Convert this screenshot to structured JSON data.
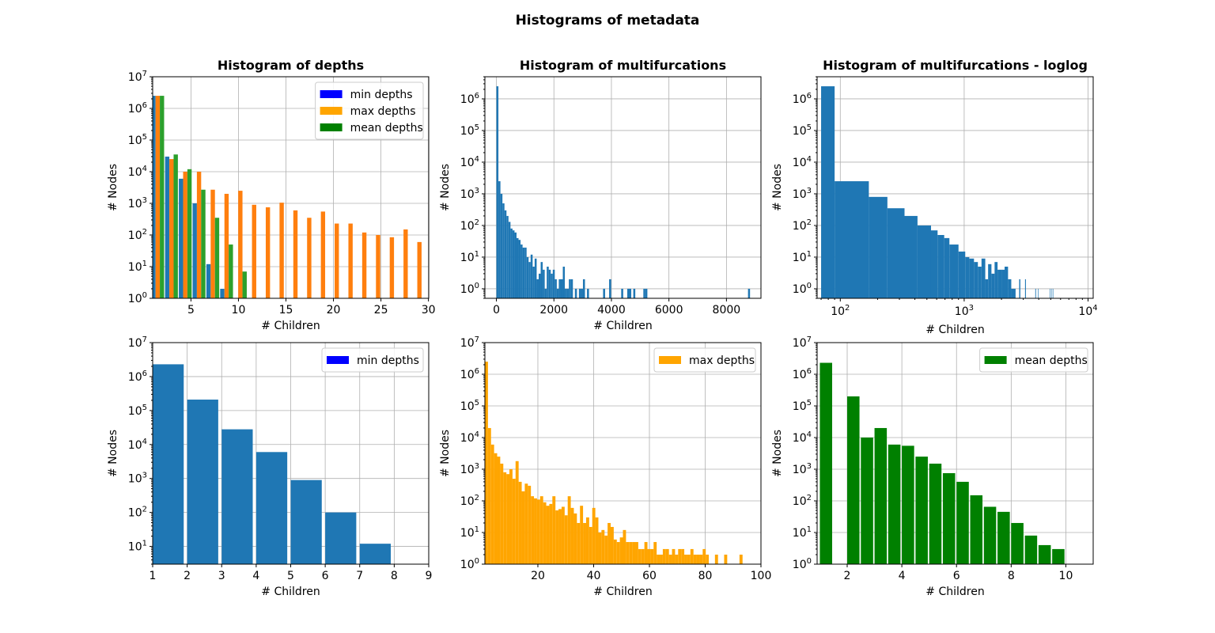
{
  "figure": {
    "title": "Histograms of metadata"
  },
  "colors": {
    "default": "#1f77b4",
    "min": "#0000ff",
    "max": "#ffa500",
    "mean": "#008000",
    "grouped_max": "#ff7f0e",
    "grouped_mean": "#2ca02c"
  },
  "chart_data": [
    {
      "id": "p1",
      "type": "bar",
      "title": "Histogram of depths",
      "xlabel": "# Children",
      "ylabel": "# Nodes",
      "xscale": "linear",
      "yscale": "log",
      "xlim": [
        0.97,
        30.03
      ],
      "ylim": [
        1,
        10000000
      ],
      "xticks": [
        5,
        10,
        15,
        20,
        25,
        30
      ],
      "yticks": [
        1,
        10,
        100,
        1000,
        10000,
        100000,
        1000000,
        10000000
      ],
      "grid": true,
      "legend_position": "upper right",
      "bar_width": 0.45,
      "series": [
        {
          "name": "min depths",
          "legend_color": "#0000ff",
          "color": "#1f77b4",
          "offset": -0.45,
          "x": [
            1.5,
            2.95,
            4.4,
            5.85,
            7.3,
            8.75
          ],
          "values": [
            2500000,
            30000,
            6000,
            1000,
            12,
            2
          ]
        },
        {
          "name": "max depths",
          "legend_color": "#ffa500",
          "color": "#ff7f0e",
          "offset": 0,
          "x": [
            1.5,
            2.95,
            4.4,
            5.85,
            7.3,
            8.75,
            10.2,
            11.65,
            13.1,
            14.55,
            16.0,
            17.45,
            18.9,
            20.35,
            21.8,
            23.25,
            24.7,
            26.15,
            27.6,
            29.05
          ],
          "values": [
            2500000,
            25000,
            10000,
            10000,
            2700,
            2000,
            2500,
            900,
            750,
            1050,
            600,
            350,
            550,
            230,
            230,
            120,
            100,
            85,
            150,
            60
          ]
        },
        {
          "name": "mean depths",
          "legend_color": "#008000",
          "color": "#2ca02c",
          "offset": 0.45,
          "x": [
            1.5,
            2.95,
            4.4,
            5.85,
            7.3,
            8.75,
            10.2
          ],
          "values": [
            2500000,
            35000,
            12000,
            2700,
            350,
            50,
            7
          ]
        }
      ]
    },
    {
      "id": "p2",
      "type": "bar",
      "title": "Histogram of multifurcations",
      "xlabel": "# Children",
      "ylabel": "# Nodes",
      "xscale": "linear",
      "yscale": "log",
      "xlim": [
        -400,
        9200
      ],
      "ylim": [
        0.5,
        5000000
      ],
      "xticks": [
        0,
        2000,
        4000,
        6000,
        8000
      ],
      "yticks": [
        1,
        10,
        100,
        1000,
        10000,
        100000,
        1000000
      ],
      "grid": true,
      "color": "#1f77b4",
      "x": [
        0,
        70,
        140,
        210,
        280,
        350,
        420,
        490,
        560,
        630,
        700,
        770,
        840,
        910,
        980,
        1050,
        1120,
        1190,
        1260,
        1330,
        1400,
        1470,
        1540,
        1610,
        1680,
        1750,
        1820,
        1890,
        1960,
        2030,
        2100,
        2170,
        2240,
        2310,
        2380,
        2450,
        2520,
        2590,
        2730,
        2870,
        2940,
        3010,
        3150,
        3710,
        3920,
        4340,
        4550,
        4620,
        4760,
        5110,
        5180,
        8750
      ],
      "width": 70,
      "values": [
        2500000,
        2500,
        1000,
        500,
        300,
        200,
        130,
        80,
        70,
        60,
        40,
        35,
        25,
        20,
        20,
        10,
        7,
        12,
        5,
        9,
        2,
        3,
        7,
        4,
        1,
        5,
        4,
        3,
        4,
        2,
        1,
        2,
        2,
        5,
        1,
        1,
        2,
        2,
        1,
        1,
        1,
        2,
        1,
        1,
        2,
        1,
        1,
        1,
        1,
        1,
        1,
        1
      ]
    },
    {
      "id": "p3",
      "type": "bar",
      "title": "Histogram of multifurcations - loglog",
      "xlabel": "# Children",
      "ylabel": "# Nodes",
      "xscale": "log",
      "yscale": "log",
      "xlim": [
        65,
        11000
      ],
      "ylim": [
        0.5,
        5000000
      ],
      "xticks": [
        100,
        1000,
        10000
      ],
      "yticks": [
        1,
        10,
        100,
        1000,
        10000,
        100000,
        1000000
      ],
      "grid": true,
      "color": "#1f77b4",
      "bins": [
        [
          70,
          90,
          2500000
        ],
        [
          90,
          170,
          2500
        ],
        [
          170,
          240,
          800
        ],
        [
          240,
          330,
          350
        ],
        [
          330,
          420,
          200
        ],
        [
          420,
          540,
          100
        ],
        [
          540,
          610,
          70
        ],
        [
          610,
          690,
          50
        ],
        [
          690,
          760,
          40
        ],
        [
          760,
          900,
          25
        ],
        [
          900,
          1020,
          15
        ],
        [
          1020,
          1100,
          10
        ],
        [
          1100,
          1200,
          9
        ],
        [
          1200,
          1290,
          7
        ],
        [
          1290,
          1380,
          5
        ],
        [
          1380,
          1480,
          9
        ],
        [
          1480,
          1560,
          2
        ],
        [
          1560,
          1660,
          6
        ],
        [
          1660,
          1760,
          3
        ],
        [
          1760,
          1860,
          7
        ],
        [
          1860,
          2000,
          4
        ],
        [
          2000,
          2120,
          4
        ],
        [
          2120,
          2260,
          5
        ],
        [
          2260,
          2400,
          2
        ],
        [
          2400,
          2600,
          1
        ],
        [
          2780,
          2840,
          2
        ],
        [
          3100,
          3150,
          2
        ],
        [
          3750,
          3800,
          1
        ],
        [
          3950,
          3990,
          1
        ],
        [
          4900,
          4950,
          1
        ],
        [
          5080,
          5120,
          1
        ],
        [
          5190,
          5230,
          1
        ]
      ]
    },
    {
      "id": "p4",
      "type": "bar",
      "title": "",
      "xlabel": "# Children",
      "ylabel": "# Nodes",
      "xscale": "linear",
      "yscale": "log",
      "xlim": [
        1,
        9
      ],
      "ylim": [
        3,
        10000000
      ],
      "xticks": [
        1,
        2,
        3,
        4,
        5,
        6,
        7,
        8,
        9
      ],
      "yticks": [
        10,
        100,
        1000,
        10000,
        100000,
        1000000,
        10000000
      ],
      "grid": true,
      "legend": [
        {
          "name": "min depths",
          "color": "#0000ff"
        }
      ],
      "legend_position": "upper right",
      "color": "#1f77b4",
      "bar_width": 0.9,
      "x": [
        1.45,
        2.45,
        3.45,
        4.45,
        5.45,
        6.45,
        7.45
      ],
      "values": [
        2300000,
        210000,
        28000,
        6000,
        900,
        100,
        12
      ]
    },
    {
      "id": "p5",
      "type": "bar",
      "title": "",
      "xlabel": "# Children",
      "ylabel": "# Nodes",
      "xscale": "linear",
      "yscale": "log",
      "xlim": [
        1,
        100
      ],
      "ylim": [
        1,
        10000000
      ],
      "xticks": [
        20,
        40,
        60,
        80,
        100
      ],
      "yticks": [
        1,
        10,
        100,
        1000,
        10000,
        100000,
        1000000,
        10000000
      ],
      "grid": true,
      "legend": [
        {
          "name": "max depths",
          "color": "#ffa500"
        }
      ],
      "legend_position": "upper right",
      "color": "#ffa500",
      "bar_width": 1.1,
      "x": [
        1.55,
        2.65,
        3.75,
        4.85,
        5.95,
        7.05,
        8.15,
        9.25,
        10.35,
        11.45,
        12.55,
        13.65,
        14.75,
        15.85,
        16.95,
        18.05,
        19.15,
        20.25,
        21.35,
        22.45,
        23.55,
        24.65,
        25.75,
        26.85,
        27.95,
        29.05,
        30.15,
        31.25,
        32.35,
        33.45,
        34.55,
        35.65,
        36.75,
        37.85,
        38.95,
        40.05,
        41.15,
        42.25,
        43.35,
        44.45,
        45.55,
        46.65,
        47.75,
        48.85,
        49.95,
        51.05,
        52.15,
        53.25,
        54.35,
        55.45,
        56.55,
        57.65,
        58.75,
        59.85,
        60.95,
        62.05,
        63.15,
        64.25,
        65.35,
        66.45,
        67.55,
        68.65,
        69.75,
        70.85,
        71.95,
        73.05,
        74.15,
        75.25,
        76.35,
        77.45,
        78.55,
        79.65,
        80.75,
        84.05,
        87.35,
        92.85
      ],
      "values": [
        2500000,
        20000,
        6000,
        3200,
        2500,
        1500,
        800,
        700,
        1000,
        500,
        1800,
        400,
        200,
        350,
        300,
        140,
        120,
        110,
        140,
        90,
        70,
        80,
        140,
        50,
        55,
        65,
        35,
        140,
        60,
        40,
        20,
        70,
        20,
        30,
        15,
        60,
        30,
        10,
        12,
        8,
        20,
        15,
        6,
        5,
        7,
        12,
        5,
        5,
        5,
        5,
        3,
        3,
        5,
        3,
        3,
        5,
        2,
        2,
        3,
        3,
        2,
        3,
        2,
        3,
        3,
        2,
        2,
        3,
        2,
        2,
        2,
        3,
        2,
        2,
        2,
        2
      ]
    },
    {
      "id": "p6",
      "type": "bar",
      "title": "",
      "xlabel": "# Children",
      "ylabel": "# Nodes",
      "xscale": "linear",
      "yscale": "log",
      "xlim": [
        0.9,
        11
      ],
      "ylim": [
        1,
        10000000
      ],
      "xticks": [
        2,
        4,
        6,
        8,
        10
      ],
      "yticks": [
        1,
        10,
        100,
        1000,
        10000,
        100000,
        1000000,
        10000000
      ],
      "grid": true,
      "legend": [
        {
          "name": "mean depths",
          "color": "#008000"
        }
      ],
      "legend_position": "upper right",
      "color": "#008000",
      "bar_width": 0.45,
      "x": [
        1.225,
        2.225,
        2.725,
        3.225,
        3.725,
        4.225,
        4.725,
        5.225,
        5.725,
        6.225,
        6.725,
        7.225,
        7.725,
        8.225,
        8.725,
        9.225,
        9.725
      ],
      "values": [
        2300000,
        200000,
        10000,
        20000,
        6000,
        5500,
        2500,
        1500,
        750,
        400,
        150,
        65,
        45,
        20,
        8,
        4,
        3
      ]
    }
  ]
}
